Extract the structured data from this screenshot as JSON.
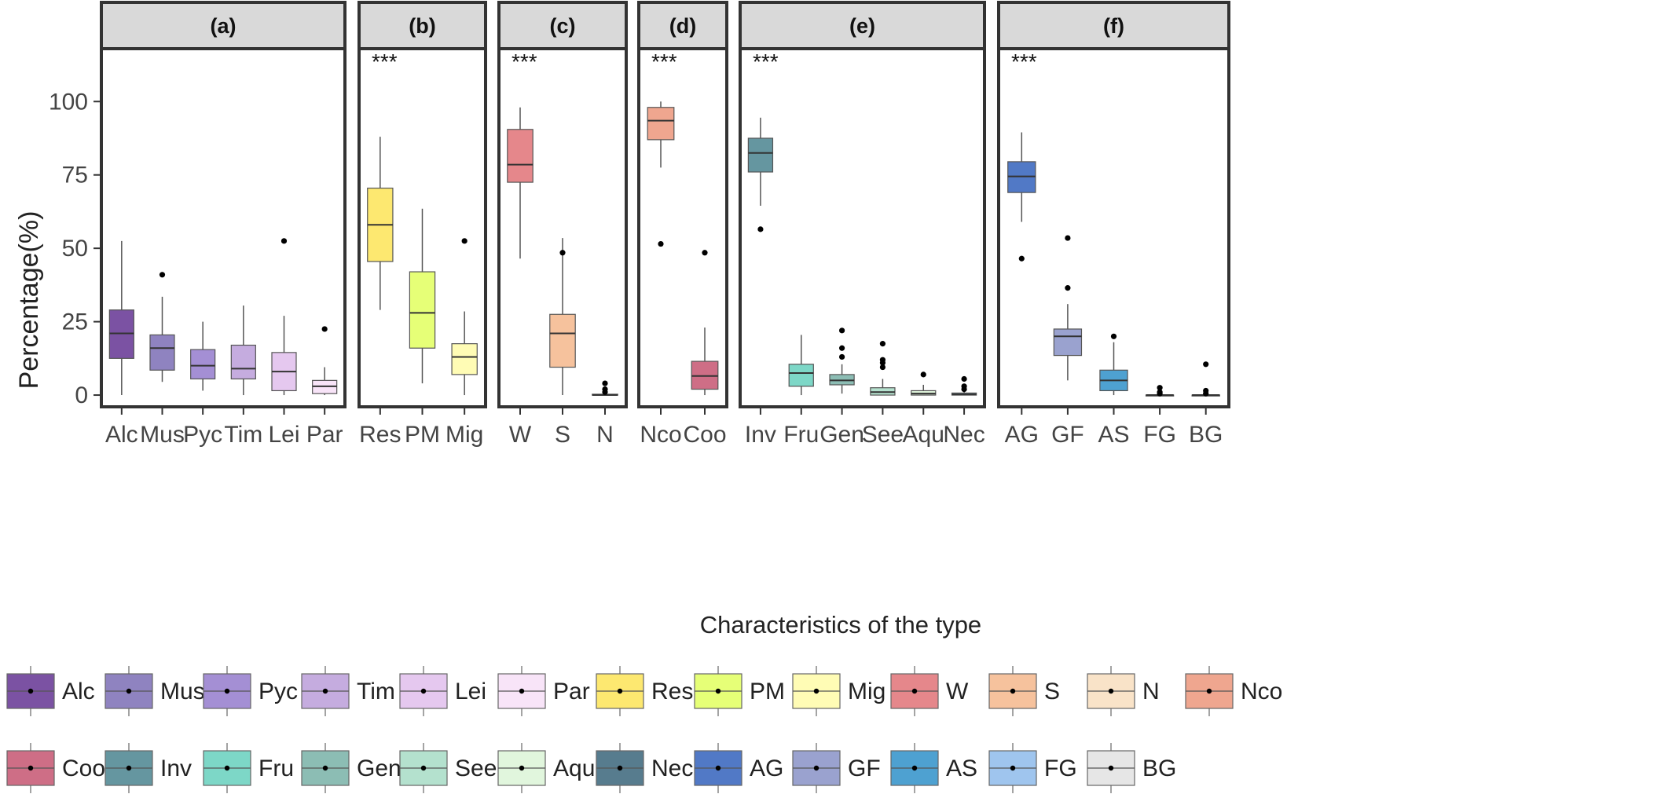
{
  "chart_data": {
    "type": "boxplot",
    "ylabel": "Percentage(%)",
    "xlabel": "Characteristics of the type",
    "ylim": [
      -4,
      118
    ],
    "yticks": [
      0,
      25,
      50,
      75,
      100
    ],
    "grid": false,
    "legend_position": "bottom",
    "panels": [
      {
        "title": "(a)",
        "significance": "",
        "boxes": [
          {
            "name": "Alc",
            "color": "#7B52A3",
            "q1": 12.5,
            "median": 21,
            "q3": 29,
            "lower": 0,
            "upper": 52.5,
            "outliers": []
          },
          {
            "name": "Mus",
            "color": "#8F83C0",
            "q1": 8.5,
            "median": 16,
            "q3": 20.5,
            "lower": 4.5,
            "upper": 33.5,
            "outliers": [
              41
            ]
          },
          {
            "name": "Pyc",
            "color": "#A48FD4",
            "q1": 5.5,
            "median": 10,
            "q3": 15.5,
            "lower": 1.5,
            "upper": 25,
            "outliers": []
          },
          {
            "name": "Tim",
            "color": "#C5ACDF",
            "q1": 5.5,
            "median": 9,
            "q3": 17,
            "lower": 0,
            "upper": 30.5,
            "outliers": []
          },
          {
            "name": "Lei",
            "color": "#E5C8EF",
            "q1": 1.5,
            "median": 8,
            "q3": 14.5,
            "lower": 0,
            "upper": 27,
            "outliers": [
              52.5
            ]
          },
          {
            "name": "Par",
            "color": "#F8E4F8",
            "q1": 0.5,
            "median": 3,
            "q3": 5,
            "lower": 0,
            "upper": 9.5,
            "outliers": [
              22.5
            ]
          }
        ]
      },
      {
        "title": "(b)",
        "significance": "***",
        "boxes": [
          {
            "name": "Res",
            "color": "#FDE870",
            "q1": 45.5,
            "median": 58,
            "q3": 70.5,
            "lower": 29,
            "upper": 88,
            "outliers": []
          },
          {
            "name": "PM",
            "color": "#E6FF77",
            "q1": 16,
            "median": 28,
            "q3": 42,
            "lower": 4,
            "upper": 63.5,
            "outliers": []
          },
          {
            "name": "Mig",
            "color": "#FFFCB5",
            "q1": 7,
            "median": 13,
            "q3": 17.5,
            "lower": 0,
            "upper": 28.5,
            "outliers": [
              52.5
            ]
          }
        ]
      },
      {
        "title": "(c)",
        "significance": "***",
        "boxes": [
          {
            "name": "W",
            "color": "#E5878B",
            "q1": 72.5,
            "median": 78.5,
            "q3": 90.5,
            "lower": 46.5,
            "upper": 98,
            "outliers": []
          },
          {
            "name": "S",
            "color": "#F6C29D",
            "q1": 9.5,
            "median": 21,
            "q3": 27.5,
            "lower": 0,
            "upper": 53.5,
            "outliers": [
              48.5
            ]
          },
          {
            "name": "N",
            "color": "#F9E3C8",
            "q1": 0,
            "median": 0,
            "q3": 0.3,
            "lower": 0,
            "upper": 0.5,
            "outliers": [
              1,
              2,
              4
            ]
          }
        ]
      },
      {
        "title": "(d)",
        "significance": "***",
        "boxes": [
          {
            "name": "Nco",
            "color": "#EFA68F",
            "q1": 87,
            "median": 93.5,
            "q3": 98,
            "lower": 77.5,
            "upper": 100,
            "outliers": [
              51.5
            ]
          },
          {
            "name": "Coo",
            "color": "#CE6E86",
            "q1": 2,
            "median": 6.5,
            "q3": 11.5,
            "lower": 0,
            "upper": 23,
            "outliers": [
              48.5
            ]
          }
        ]
      },
      {
        "title": "(e)",
        "significance": "***",
        "boxes": [
          {
            "name": "Inv",
            "color": "#6596A0",
            "q1": 76,
            "median": 82.5,
            "q3": 87.5,
            "lower": 64.5,
            "upper": 94.5,
            "outliers": [
              56.5
            ]
          },
          {
            "name": "Fru",
            "color": "#7DD7C7",
            "q1": 3,
            "median": 7.5,
            "q3": 10.5,
            "lower": 0,
            "upper": 20.5,
            "outliers": []
          },
          {
            "name": "Gen",
            "color": "#8CBDB4",
            "q1": 3.5,
            "median": 5,
            "q3": 7,
            "lower": 0.5,
            "upper": 10.5,
            "outliers": [
              13,
              16,
              22
            ]
          },
          {
            "name": "See",
            "color": "#B4E1CE",
            "q1": 0,
            "median": 1,
            "q3": 2.5,
            "lower": 0,
            "upper": 5.5,
            "outliers": [
              9.5,
              11,
              12,
              17.5
            ]
          },
          {
            "name": "Aqu",
            "color": "#E1F6DD",
            "q1": 0,
            "median": 0.5,
            "q3": 1.5,
            "lower": 0,
            "upper": 3.5,
            "outliers": [
              7
            ]
          },
          {
            "name": "Nec",
            "color": "#577C8E",
            "q1": 0,
            "median": 0.2,
            "q3": 0.7,
            "lower": 0,
            "upper": 1.5,
            "outliers": [
              2,
              3,
              5.5
            ]
          }
        ]
      },
      {
        "title": "(f)",
        "significance": "***",
        "boxes": [
          {
            "name": "AG",
            "color": "#5179C6",
            "q1": 69,
            "median": 74.5,
            "q3": 79.5,
            "lower": 59,
            "upper": 89.5,
            "outliers": [
              46.5
            ]
          },
          {
            "name": "GF",
            "color": "#9AA2CF",
            "q1": 13.5,
            "median": 20,
            "q3": 22.5,
            "lower": 5,
            "upper": 31,
            "outliers": [
              36.5,
              53.5
            ]
          },
          {
            "name": "AS",
            "color": "#4EA1D1",
            "q1": 1.5,
            "median": 5,
            "q3": 8.5,
            "lower": 0,
            "upper": 18,
            "outliers": [
              20
            ]
          },
          {
            "name": "FG",
            "color": "#9FC5EE",
            "q1": 0,
            "median": 0,
            "q3": 0,
            "lower": 0,
            "upper": 0,
            "outliers": [
              0.5,
              1,
              2.5
            ]
          },
          {
            "name": "BG",
            "color": "#E6E6E6",
            "q1": 0,
            "median": 0,
            "q3": 0,
            "lower": 0,
            "upper": 0,
            "outliers": [
              0.5,
              1.5,
              10.5
            ]
          }
        ]
      }
    ],
    "legend": [
      {
        "label": "Alc",
        "color": "#7B52A3"
      },
      {
        "label": "Mus",
        "color": "#8F83C0"
      },
      {
        "label": "Pyc",
        "color": "#A48FD4"
      },
      {
        "label": "Tim",
        "color": "#C5ACDF"
      },
      {
        "label": "Lei",
        "color": "#E5C8EF"
      },
      {
        "label": "Par",
        "color": "#F8E4F8"
      },
      {
        "label": "Res",
        "color": "#FDE870"
      },
      {
        "label": "PM",
        "color": "#E6FF77"
      },
      {
        "label": "Mig",
        "color": "#FFFCB5"
      },
      {
        "label": "W",
        "color": "#E5878B"
      },
      {
        "label": "S",
        "color": "#F6C29D"
      },
      {
        "label": "N",
        "color": "#F9E3C8"
      },
      {
        "label": "Nco",
        "color": "#EFA68F"
      },
      {
        "label": "Coo",
        "color": "#CE6E86"
      },
      {
        "label": "Inv",
        "color": "#6596A0"
      },
      {
        "label": "Fru",
        "color": "#7DD7C7"
      },
      {
        "label": "Gen",
        "color": "#8CBDB4"
      },
      {
        "label": "See",
        "color": "#B4E1CE"
      },
      {
        "label": "Aqu",
        "color": "#E1F6DD"
      },
      {
        "label": "Nec",
        "color": "#577C8E"
      },
      {
        "label": "AG",
        "color": "#5179C6"
      },
      {
        "label": "GF",
        "color": "#9AA2CF"
      },
      {
        "label": "AS",
        "color": "#4EA1D1"
      },
      {
        "label": "FG",
        "color": "#9FC5EE"
      },
      {
        "label": "BG",
        "color": "#E6E6E6"
      }
    ]
  }
}
